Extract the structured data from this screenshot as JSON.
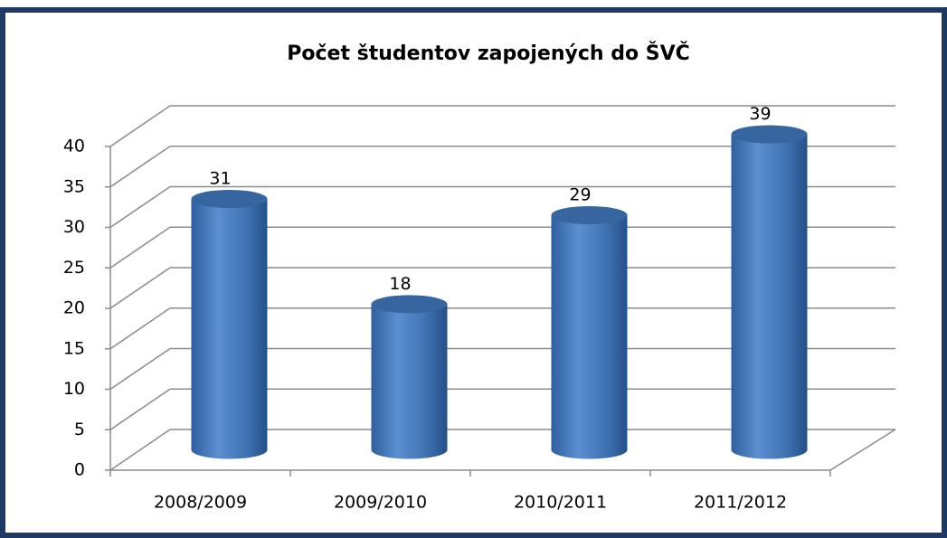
{
  "chart_data": {
    "type": "bar3d",
    "title": "Počet študentov zapojených do ŠVČ",
    "categories": [
      "2008/2009",
      "2009/2010",
      "2010/2011",
      "2011/2012"
    ],
    "values": [
      31,
      18,
      29,
      39
    ],
    "color": "#4a7ebb",
    "ylim": [
      0,
      40
    ],
    "yticks": [
      0,
      5,
      10,
      15,
      20,
      25,
      30,
      35,
      40
    ],
    "grid": true
  }
}
